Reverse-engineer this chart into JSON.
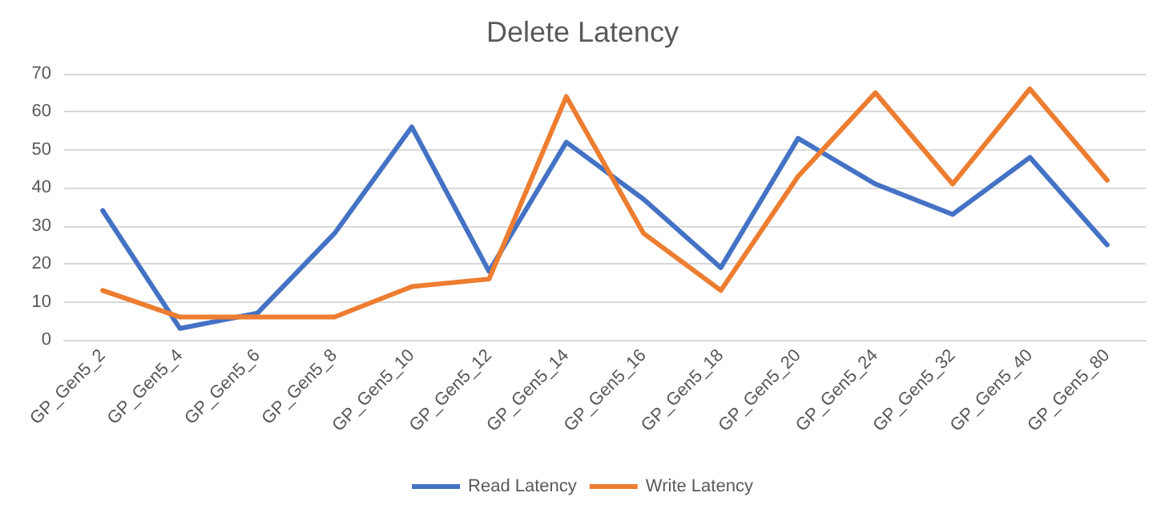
{
  "chart_data": {
    "type": "line",
    "title": "Delete Latency",
    "categories": [
      "GP_Gen5_2",
      "GP_Gen5_4",
      "GP_Gen5_6",
      "GP_Gen5_8",
      "GP_Gen5_10",
      "GP_Gen5_12",
      "GP_Gen5_14",
      "GP_Gen5_16",
      "GP_Gen5_18",
      "GP_Gen5_20",
      "GP_Gen5_24",
      "GP_Gen5_32",
      "GP_Gen5_40",
      "GP_Gen5_80"
    ],
    "series": [
      {
        "name": "Read Latency",
        "color": "#4472c4",
        "values": [
          34,
          3,
          7,
          28,
          56,
          18,
          52,
          37,
          19,
          53,
          41,
          33,
          48,
          25
        ]
      },
      {
        "name": "Write Latency",
        "color": "#ed7d31",
        "values": [
          13,
          6,
          6,
          6,
          14,
          16,
          64,
          28,
          13,
          43,
          65,
          41,
          66,
          42
        ]
      }
    ],
    "ylim": [
      0,
      70
    ],
    "yticks": [
      0,
      10,
      20,
      30,
      40,
      50,
      60,
      70
    ],
    "grid": "y",
    "legend": "bottom",
    "marker": "none",
    "line_style": "solid"
  }
}
